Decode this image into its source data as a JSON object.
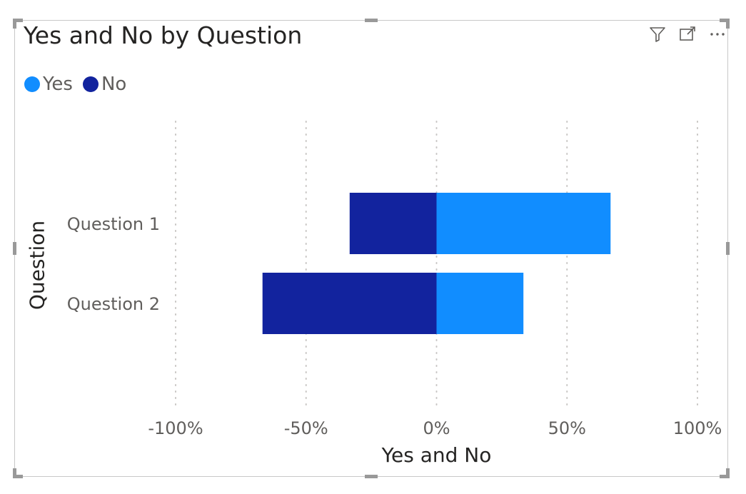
{
  "title": "Yes and No by Question",
  "legend": [
    {
      "name": "Yes",
      "color": "#118DFF"
    },
    {
      "name": "No",
      "color": "#12239E"
    }
  ],
  "header_icons": [
    "filter-icon",
    "focus-mode-icon",
    "more-options-icon"
  ],
  "chart_data": {
    "type": "bar",
    "orientation": "horizontal",
    "stacked": "diverging",
    "title": "Yes and No by Question",
    "xlabel": "Yes and No",
    "ylabel": "Question",
    "categories": [
      "Question 1",
      "Question 2"
    ],
    "series": [
      {
        "name": "Yes",
        "color": "#118DFF",
        "values": [
          0.667,
          0.333
        ]
      },
      {
        "name": "No",
        "color": "#12239E",
        "values": [
          -0.333,
          -0.667
        ]
      }
    ],
    "xlim": [
      -1,
      1
    ],
    "x_ticks": [
      -1,
      -0.5,
      0,
      0.5,
      1
    ],
    "x_tick_labels": [
      "-100%",
      "-50%",
      "0%",
      "50%",
      "100%"
    ],
    "grid": "vertical dotted",
    "legend_position": "top-left"
  }
}
